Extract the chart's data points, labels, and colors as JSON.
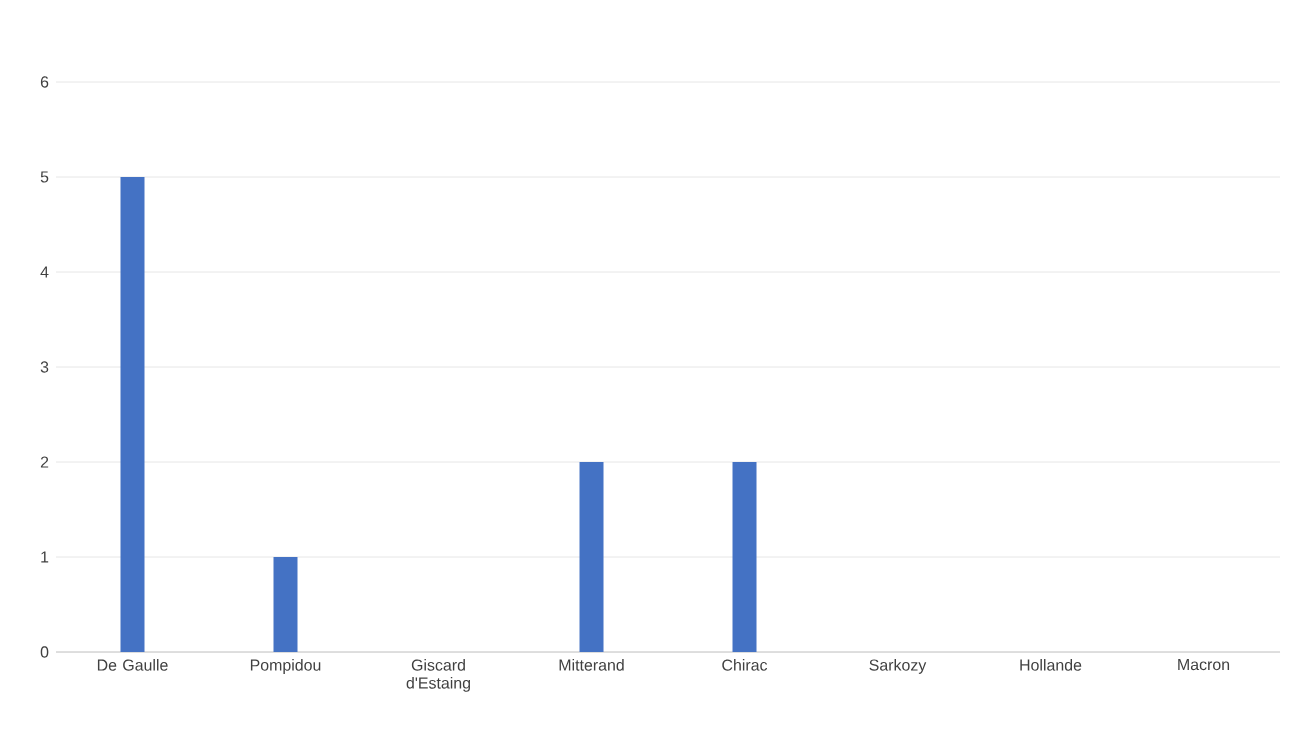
{
  "chart_data": {
    "type": "bar",
    "categories": [
      "De Gaulle",
      "Pompidou",
      "Giscard d'Estaing",
      "Mitterand",
      "Chirac",
      "Sarkozy",
      "Hollande",
      "Macron"
    ],
    "values": [
      5,
      1,
      0,
      2,
      2,
      0,
      0,
      0
    ],
    "color": "#4472c4",
    "ylim": [
      0,
      6
    ],
    "yticks": [
      0,
      1,
      2,
      3,
      4,
      5,
      6
    ],
    "grid": "y"
  }
}
